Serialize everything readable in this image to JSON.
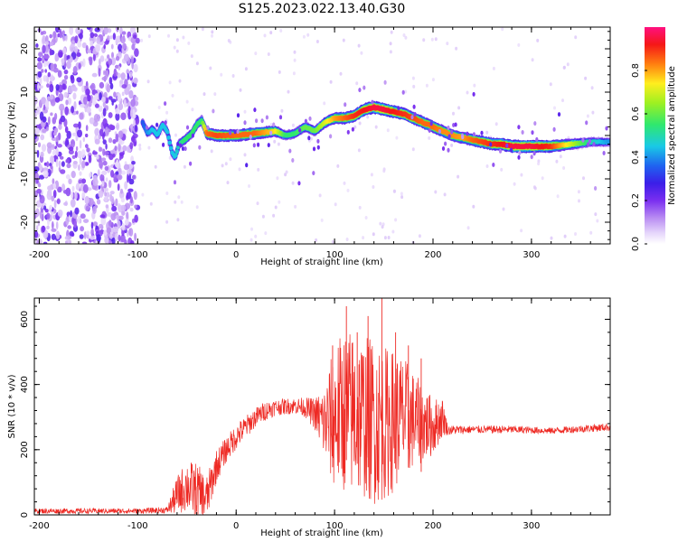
{
  "title": "S125.2023.022.13.40.G30",
  "colors": {
    "snr_line": "#ee2a24",
    "colormap": [
      "#ffffff",
      "#e6d6fb",
      "#b98cf2",
      "#7a2ff0",
      "#3b1ee8",
      "#1f63f0",
      "#19c9e6",
      "#2fe86e",
      "#9ef021",
      "#ffee1e",
      "#ff7e10",
      "#f51717",
      "#ff1080"
    ],
    "colormap_stops": [
      0.0,
      0.05,
      0.12,
      0.2,
      0.28,
      0.36,
      0.45,
      0.55,
      0.65,
      0.74,
      0.83,
      0.92,
      1.0
    ]
  },
  "chart_data": [
    {
      "type": "heatmap",
      "title": "",
      "xlabel": "Height of straight line (km)",
      "ylabel": "Frequency (Hz)",
      "xlim": [
        -205,
        380
      ],
      "ylim": [
        -25,
        25
      ],
      "xticks": [
        -200,
        -100,
        0,
        100,
        200,
        300
      ],
      "yticks": [
        -20,
        -10,
        0,
        10,
        20
      ],
      "grid": false,
      "noise_region": {
        "x": [
          -205,
          -100
        ],
        "y": [
          -25,
          25
        ]
      },
      "ridge": {
        "description": "frequency of peak spectral amplitude vs height",
        "x": [
          -95,
          -90,
          -85,
          -80,
          -75,
          -70,
          -65,
          -62,
          -58,
          -52,
          -45,
          -40,
          -35,
          -30,
          -20,
          0,
          20,
          40,
          50,
          60,
          70,
          80,
          90,
          100,
          110,
          120,
          130,
          140,
          150,
          160,
          170,
          180,
          190,
          200,
          210,
          220,
          230,
          240,
          250,
          260,
          270,
          280,
          300,
          320,
          340,
          360,
          380
        ],
        "y": [
          3,
          0.5,
          1.5,
          0,
          2.5,
          1,
          -4,
          -5,
          -2,
          -1,
          0.5,
          2.5,
          3.5,
          0.5,
          0,
          0,
          0.5,
          1,
          0,
          0.5,
          2,
          1,
          3,
          4,
          4,
          4.5,
          6,
          6.5,
          6,
          5.5,
          5,
          4,
          3,
          2,
          1,
          0,
          -0.5,
          -1,
          -1.5,
          -2,
          -2,
          -2.5,
          -2.5,
          -2.5,
          -2,
          -1.5,
          -1.5
        ],
        "amplitude": [
          0.35,
          0.4,
          0.45,
          0.45,
          0.45,
          0.45,
          0.45,
          0.45,
          0.5,
          0.55,
          0.55,
          0.55,
          0.55,
          0.85,
          0.88,
          0.85,
          0.85,
          0.75,
          0.55,
          0.55,
          0.6,
          0.6,
          0.7,
          0.8,
          0.85,
          0.9,
          0.92,
          0.95,
          0.95,
          0.92,
          0.9,
          0.88,
          0.85,
          0.85,
          0.82,
          0.82,
          0.8,
          0.85,
          0.88,
          0.9,
          0.92,
          0.95,
          0.95,
          0.9,
          0.7,
          0.5,
          0.4
        ]
      },
      "colorbar": {
        "label": "Normalized spectral amplitude",
        "range": [
          0,
          1
        ],
        "ticks": [
          0.0,
          0.2,
          0.4,
          0.6,
          0.8
        ],
        "tick_labels": [
          "0.0",
          "0.2",
          "0.4",
          "0.6",
          "0.8"
        ]
      }
    },
    {
      "type": "line",
      "title": "",
      "xlabel": "Height of straight line (km)",
      "ylabel": "SNR (10 * v/v)",
      "xlim": [
        -205,
        380
      ],
      "ylim": [
        0,
        665
      ],
      "xticks": [
        -200,
        -100,
        0,
        100,
        200,
        300
      ],
      "yticks": [
        0,
        200,
        400,
        600
      ],
      "grid": false,
      "series": [
        {
          "envelope": {
            "x": [
              -205,
              -100,
              -70,
              -60,
              -50,
              -40,
              -30,
              -20,
              -10,
              0,
              10,
              20,
              30,
              40,
              60,
              70,
              80,
              90,
              100,
              110,
              120,
              130,
              140,
              150,
              160,
              170,
              180,
              190,
              200,
              210,
              215,
              240,
              280,
              320,
              360,
              380
            ],
            "mean": [
              12,
              12,
              15,
              60,
              90,
              70,
              50,
              150,
              200,
              240,
              270,
              300,
              320,
              330,
              335,
              330,
              310,
              280,
              300,
              320,
              310,
              300,
              290,
              280,
              290,
              300,
              290,
              280,
              270,
              300,
              260,
              262,
              262,
              258,
              266,
              270
            ],
            "spread": [
              8,
              8,
              10,
              60,
              80,
              90,
              70,
              50,
              40,
              40,
              35,
              30,
              30,
              25,
              25,
              30,
              50,
              120,
              230,
              250,
              260,
              250,
              260,
              240,
              220,
              190,
              150,
              120,
              90,
              60,
              15,
              12,
              12,
              10,
              12,
              12
            ]
          },
          "peaks": [
            {
              "x": 98,
              "y": 520
            },
            {
              "x": 112,
              "y": 640
            },
            {
              "x": 123,
              "y": 560
            },
            {
              "x": 134,
              "y": 610
            },
            {
              "x": 148,
              "y": 665
            },
            {
              "x": 162,
              "y": 560
            },
            {
              "x": 175,
              "y": 520
            },
            {
              "x": 188,
              "y": 480
            }
          ]
        }
      ]
    }
  ]
}
